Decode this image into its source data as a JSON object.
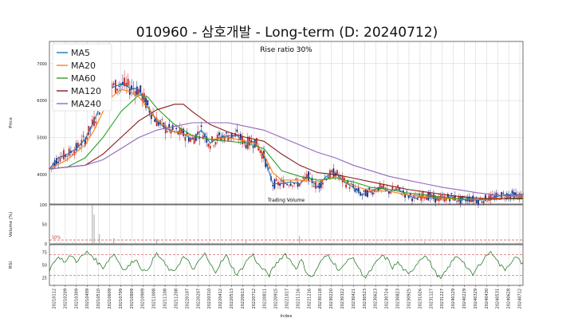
{
  "chart_data": {
    "type": "line",
    "title": "010960 - 삼호개발 - Long-term (D: 20240712)",
    "rise_ratio_label": "Rise ratio 30%",
    "volume_title": "Trading Volume",
    "xlabel": "Index",
    "price_panel": {
      "ylabel": "Price",
      "ylim": [
        3200,
        7600
      ],
      "yticks": [
        4000,
        5000,
        6000,
        7000
      ],
      "grid": true,
      "legend_position": "top-left",
      "series": [
        {
          "name": "MA5",
          "color": "#1f77b4",
          "points": [
            [
              0,
              4150
            ],
            [
              5,
              4450
            ],
            [
              10,
              4550
            ],
            [
              15,
              4700
            ],
            [
              20,
              4950
            ],
            [
              25,
              5450
            ],
            [
              30,
              6050
            ],
            [
              35,
              6350
            ],
            [
              40,
              6450
            ],
            [
              45,
              6350
            ],
            [
              50,
              6300
            ],
            [
              55,
              5850
            ],
            [
              60,
              5450
            ],
            [
              65,
              5250
            ],
            [
              70,
              5150
            ],
            [
              75,
              5100
            ],
            [
              80,
              4950
            ],
            [
              85,
              5200
            ],
            [
              90,
              4850
            ],
            [
              95,
              5000
            ],
            [
              100,
              5050
            ],
            [
              105,
              5050
            ],
            [
              110,
              4850
            ],
            [
              115,
              4900
            ],
            [
              120,
              4500
            ],
            [
              125,
              3750
            ],
            [
              130,
              3750
            ],
            [
              135,
              3800
            ],
            [
              140,
              3750
            ],
            [
              145,
              3950
            ],
            [
              150,
              3650
            ],
            [
              155,
              3950
            ],
            [
              160,
              4050
            ],
            [
              165,
              3800
            ],
            [
              170,
              3650
            ],
            [
              175,
              3450
            ],
            [
              180,
              3550
            ],
            [
              185,
              3650
            ],
            [
              190,
              3550
            ],
            [
              195,
              3600
            ],
            [
              200,
              3450
            ],
            [
              205,
              3350
            ],
            [
              210,
              3450
            ],
            [
              215,
              3350
            ],
            [
              220,
              3350
            ],
            [
              225,
              3400
            ],
            [
              230,
              3300
            ],
            [
              235,
              3350
            ],
            [
              240,
              3300
            ],
            [
              245,
              3350
            ],
            [
              250,
              3400
            ],
            [
              255,
              3450
            ],
            [
              260,
              3450
            ],
            [
              265,
              3400
            ]
          ]
        },
        {
          "name": "MA20",
          "color": "#ff7f0e",
          "points": [
            [
              0,
              4150
            ],
            [
              10,
              4400
            ],
            [
              20,
              4800
            ],
            [
              25,
              5200
            ],
            [
              30,
              5700
            ],
            [
              35,
              6100
            ],
            [
              40,
              6300
            ],
            [
              45,
              6250
            ],
            [
              50,
              6100
            ],
            [
              55,
              5800
            ],
            [
              60,
              5500
            ],
            [
              65,
              5300
            ],
            [
              70,
              5150
            ],
            [
              80,
              5050
            ],
            [
              90,
              4950
            ],
            [
              100,
              5000
            ],
            [
              110,
              4900
            ],
            [
              115,
              4850
            ],
            [
              120,
              4550
            ],
            [
              125,
              4050
            ],
            [
              130,
              3850
            ],
            [
              140,
              3850
            ],
            [
              150,
              3800
            ],
            [
              160,
              3950
            ],
            [
              170,
              3700
            ],
            [
              180,
              3550
            ],
            [
              190,
              3550
            ],
            [
              200,
              3450
            ],
            [
              210,
              3400
            ],
            [
              220,
              3350
            ],
            [
              230,
              3330
            ],
            [
              240,
              3320
            ],
            [
              250,
              3360
            ],
            [
              260,
              3420
            ],
            [
              265,
              3420
            ]
          ]
        },
        {
          "name": "MA60",
          "color": "#2ca02c",
          "points": [
            [
              0,
              4150
            ],
            [
              10,
              4200
            ],
            [
              20,
              4450
            ],
            [
              30,
              5000
            ],
            [
              40,
              5700
            ],
            [
              50,
              6150
            ],
            [
              55,
              6100
            ],
            [
              60,
              5800
            ],
            [
              70,
              5350
            ],
            [
              80,
              5050
            ],
            [
              90,
              4950
            ],
            [
              100,
              4900
            ],
            [
              110,
              4850
            ],
            [
              120,
              4700
            ],
            [
              125,
              4400
            ],
            [
              130,
              4100
            ],
            [
              140,
              3950
            ],
            [
              150,
              3850
            ],
            [
              160,
              3900
            ],
            [
              170,
              3800
            ],
            [
              180,
              3650
            ],
            [
              190,
              3600
            ],
            [
              200,
              3500
            ],
            [
              210,
              3450
            ],
            [
              220,
              3380
            ],
            [
              230,
              3340
            ],
            [
              240,
              3320
            ],
            [
              250,
              3330
            ],
            [
              260,
              3360
            ],
            [
              265,
              3370
            ]
          ]
        },
        {
          "name": "MA120",
          "color": "#8b1a1a",
          "points": [
            [
              0,
              4150
            ],
            [
              20,
              4250
            ],
            [
              30,
              4550
            ],
            [
              40,
              5000
            ],
            [
              50,
              5450
            ],
            [
              60,
              5750
            ],
            [
              70,
              5900
            ],
            [
              75,
              5900
            ],
            [
              80,
              5700
            ],
            [
              90,
              5350
            ],
            [
              100,
              5150
            ],
            [
              110,
              5000
            ],
            [
              120,
              4900
            ],
            [
              130,
              4550
            ],
            [
              140,
              4250
            ],
            [
              150,
              4050
            ],
            [
              160,
              4000
            ],
            [
              170,
              3900
            ],
            [
              180,
              3800
            ],
            [
              190,
              3700
            ],
            [
              200,
              3600
            ],
            [
              210,
              3530
            ],
            [
              220,
              3460
            ],
            [
              230,
              3400
            ],
            [
              240,
              3360
            ],
            [
              250,
              3340
            ],
            [
              260,
              3340
            ],
            [
              265,
              3340
            ]
          ]
        },
        {
          "name": "MA240",
          "color": "#9467bd",
          "points": [
            [
              0,
              4150
            ],
            [
              20,
              4250
            ],
            [
              30,
              4400
            ],
            [
              40,
              4700
            ],
            [
              50,
              5000
            ],
            [
              60,
              5200
            ],
            [
              70,
              5300
            ],
            [
              80,
              5400
            ],
            [
              90,
              5400
            ],
            [
              100,
              5400
            ],
            [
              110,
              5300
            ],
            [
              120,
              5200
            ],
            [
              130,
              5000
            ],
            [
              140,
              4800
            ],
            [
              150,
              4600
            ],
            [
              160,
              4450
            ],
            [
              170,
              4250
            ],
            [
              180,
              4100
            ],
            [
              190,
              3950
            ],
            [
              200,
              3850
            ],
            [
              210,
              3750
            ],
            [
              220,
              3650
            ],
            [
              230,
              3580
            ],
            [
              240,
              3500
            ],
            [
              250,
              3450
            ],
            [
              260,
              3400
            ],
            [
              265,
              3390
            ]
          ]
        }
      ]
    },
    "volume_panel": {
      "ylabel": "Volume (%)",
      "ylim": [
        0,
        100
      ],
      "yticks": [
        0,
        50,
        100
      ],
      "threshold_label": "10%",
      "threshold_value": 10,
      "spikes": [
        [
          24,
          100
        ],
        [
          25,
          75
        ],
        [
          28,
          25
        ],
        [
          36,
          15
        ],
        [
          60,
          12
        ],
        [
          110,
          8
        ],
        [
          140,
          20
        ],
        [
          210,
          6
        ]
      ]
    },
    "rsi_panel": {
      "ylabel": "RSI",
      "ylim": [
        10,
        90
      ],
      "yticks": [
        25,
        50,
        75
      ],
      "bands": [
        30,
        70
      ],
      "color": "#2e7d32",
      "points": [
        [
          0,
          40
        ],
        [
          3,
          60
        ],
        [
          6,
          65
        ],
        [
          9,
          55
        ],
        [
          12,
          70
        ],
        [
          15,
          58
        ],
        [
          18,
          66
        ],
        [
          21,
          75
        ],
        [
          24,
          68
        ],
        [
          27,
          55
        ],
        [
          30,
          45
        ],
        [
          33,
          60
        ],
        [
          36,
          72
        ],
        [
          39,
          55
        ],
        [
          42,
          40
        ],
        [
          45,
          50
        ],
        [
          48,
          63
        ],
        [
          51,
          46
        ],
        [
          54,
          35
        ],
        [
          57,
          55
        ],
        [
          60,
          72
        ],
        [
          63,
          60
        ],
        [
          66,
          45
        ],
        [
          69,
          35
        ],
        [
          72,
          50
        ],
        [
          75,
          66
        ],
        [
          78,
          55
        ],
        [
          81,
          40
        ],
        [
          84,
          60
        ],
        [
          87,
          72
        ],
        [
          90,
          50
        ],
        [
          93,
          38
        ],
        [
          96,
          55
        ],
        [
          99,
          68
        ],
        [
          102,
          48
        ],
        [
          105,
          30
        ],
        [
          108,
          45
        ],
        [
          111,
          62
        ],
        [
          114,
          70
        ],
        [
          117,
          50
        ],
        [
          120,
          40
        ],
        [
          123,
          30
        ],
        [
          126,
          48
        ],
        [
          129,
          62
        ],
        [
          132,
          72
        ],
        [
          135,
          58
        ],
        [
          138,
          44
        ],
        [
          141,
          60
        ],
        [
          144,
          35
        ],
        [
          147,
          25
        ],
        [
          150,
          45
        ],
        [
          153,
          62
        ],
        [
          156,
          70
        ],
        [
          159,
          55
        ],
        [
          162,
          40
        ],
        [
          165,
          48
        ],
        [
          168,
          66
        ],
        [
          171,
          58
        ],
        [
          174,
          38
        ],
        [
          177,
          25
        ],
        [
          180,
          40
        ],
        [
          183,
          55
        ],
        [
          186,
          68
        ],
        [
          189,
          62
        ],
        [
          192,
          45
        ],
        [
          195,
          55
        ],
        [
          198,
          42
        ],
        [
          201,
          30
        ],
        [
          204,
          45
        ],
        [
          207,
          60
        ],
        [
          210,
          70
        ],
        [
          213,
          55
        ],
        [
          216,
          35
        ],
        [
          219,
          22
        ],
        [
          222,
          38
        ],
        [
          225,
          55
        ],
        [
          228,
          68
        ],
        [
          231,
          60
        ],
        [
          234,
          42
        ],
        [
          237,
          30
        ],
        [
          240,
          48
        ],
        [
          243,
          62
        ],
        [
          246,
          75
        ],
        [
          249,
          70
        ],
        [
          252,
          50
        ],
        [
          255,
          42
        ],
        [
          258,
          55
        ],
        [
          261,
          65
        ],
        [
          264,
          55
        ]
      ]
    },
    "x_tick_labels": [
      "20210112",
      "20210209",
      "20210309",
      "20210409",
      "20210510",
      "20210609",
      "20210709",
      "20210809",
      "20210909",
      "20211008",
      "20211108",
      "20211208",
      "20220107",
      "20220207",
      "20220310",
      "20220412",
      "20220513",
      "20220613",
      "20220712",
      "20220811",
      "20220915",
      "20221017",
      "20221116",
      "20221216",
      "20230118",
      "20230220",
      "20230322",
      "20230421",
      "20230523",
      "20230623",
      "20230724",
      "20230823",
      "20230925",
      "20231026",
      "20231127",
      "20231227",
      "20240129",
      "20240229",
      "20240329",
      "20240430",
      "20240531",
      "20240628",
      "20240712"
    ],
    "n_points": 266
  }
}
